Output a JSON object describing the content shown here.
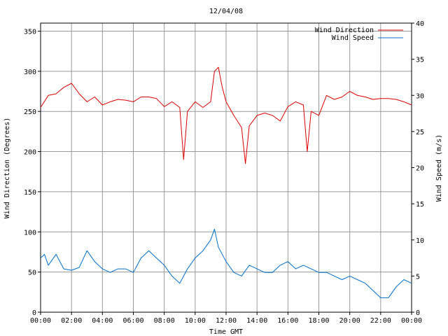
{
  "chart_data": {
    "type": "line",
    "title": "12/04/08",
    "xlabel": "Time GMT",
    "ylabel_left": "Wind Direction (Degrees)",
    "ylabel_right": "Wind Speed (m/s)",
    "x_ticks": [
      "00:00",
      "02:00",
      "04:00",
      "06:00",
      "08:00",
      "10:00",
      "12:00",
      "14:00",
      "16:00",
      "18:00",
      "20:00",
      "22:00",
      "00:00"
    ],
    "x_range_hours": [
      0,
      24
    ],
    "y_left_range": [
      0,
      360
    ],
    "y_left_ticks": [
      0,
      50,
      100,
      150,
      200,
      250,
      300,
      350
    ],
    "y_right_range": [
      0,
      40
    ],
    "y_right_ticks": [
      0,
      5,
      10,
      15,
      20,
      25,
      30,
      35,
      40
    ],
    "grid": true,
    "legend_position": "top-right",
    "series": [
      {
        "name": "Wind Direction",
        "axis": "left",
        "color": "#dd0000",
        "x_hours": [
          0,
          0.5,
          1,
          1.5,
          2,
          2.5,
          3,
          3.5,
          4,
          4.5,
          5,
          5.5,
          6,
          6.5,
          7,
          7.5,
          8,
          8.5,
          9,
          9.25,
          9.5,
          10,
          10.5,
          11,
          11.25,
          11.5,
          11.75,
          12,
          12.5,
          13,
          13.25,
          13.5,
          14,
          14.5,
          15,
          15.5,
          16,
          16.5,
          17,
          17.25,
          17.5,
          18,
          18.5,
          19,
          19.5,
          20,
          20.5,
          21,
          21.5,
          22,
          22.5,
          23,
          23.5,
          24
        ],
        "values": [
          255,
          270,
          272,
          280,
          285,
          272,
          262,
          268,
          258,
          262,
          265,
          264,
          262,
          268,
          268,
          266,
          256,
          262,
          255,
          190,
          250,
          262,
          255,
          262,
          300,
          305,
          280,
          262,
          245,
          230,
          185,
          232,
          245,
          248,
          245,
          238,
          256,
          262,
          258,
          200,
          250,
          245,
          270,
          265,
          268,
          275,
          270,
          268,
          265,
          266,
          266,
          265,
          262,
          258
        ]
      },
      {
        "name": "Wind Speed",
        "axis": "right",
        "color": "#0070cc",
        "x_hours": [
          0,
          0.25,
          0.5,
          1,
          1.5,
          2,
          2.5,
          3,
          3.5,
          4,
          4.5,
          5,
          5.5,
          6,
          6.5,
          7,
          7.5,
          8,
          8.5,
          9,
          9.5,
          10,
          10.5,
          11,
          11.25,
          11.5,
          12,
          12.5,
          13,
          13.5,
          14,
          14.5,
          15,
          15.5,
          16,
          16.5,
          17,
          17.5,
          18,
          18.5,
          19,
          19.5,
          20,
          20.5,
          21,
          21.5,
          22,
          22.5,
          23,
          23.5,
          24
        ],
        "values": [
          7.5,
          8.0,
          6.5,
          8.0,
          6.0,
          5.8,
          6.2,
          8.5,
          7.0,
          6.0,
          5.5,
          6.0,
          6.0,
          5.5,
          7.5,
          8.5,
          7.5,
          6.5,
          5.0,
          4.0,
          6.0,
          7.5,
          8.5,
          10.0,
          11.5,
          9.0,
          7.0,
          5.5,
          5.0,
          6.5,
          6.0,
          5.5,
          5.5,
          6.5,
          7.0,
          6.0,
          6.5,
          6.0,
          5.5,
          5.5,
          5.0,
          4.5,
          5.0,
          4.5,
          4.0,
          3.0,
          2.0,
          2.0,
          3.5,
          4.5,
          4.0
        ]
      }
    ]
  }
}
